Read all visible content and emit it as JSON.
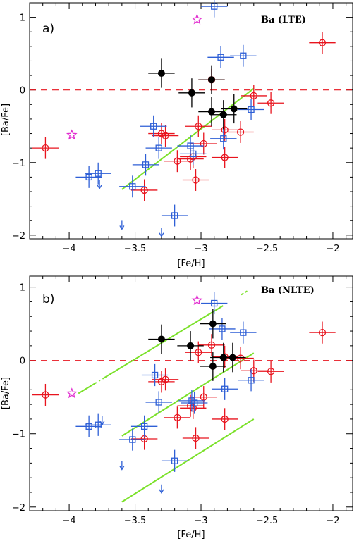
{
  "colors": {
    "red": "#e8141e",
    "blue": "#2e5fd6",
    "black": "#000000",
    "magenta": "#e22fd0",
    "green": "#7be12a",
    "zeroline": "#e8141e"
  },
  "chart_data": [
    {
      "type": "scatter",
      "panel_label": "a)",
      "element_label": "Ba   (LTE)",
      "xlabel": "[Fe/H]",
      "ylabel": "[Ba/Fe]",
      "xlim": [
        -4.3,
        -1.85
      ],
      "ylim": [
        -2.05,
        1.2
      ],
      "xticks": [
        -4,
        -3.5,
        -3,
        -2.5,
        -2
      ],
      "xtick_labels": [
        "−4",
        "−3.5",
        "−3",
        "−2.5",
        "−2"
      ],
      "yticks": [
        -2,
        -1,
        0,
        1
      ],
      "ytick_labels": [
        "−2",
        "−1",
        "0",
        "1"
      ],
      "zero_line": 0,
      "series": [
        {
          "marker": "circle-open",
          "color": "red",
          "x": [
            -4.18,
            -3.43,
            -3.3,
            -3.27,
            -3.18,
            -3.08,
            -3.06,
            -3.04,
            -3.02,
            -2.98,
            -2.92,
            -2.82,
            -2.82,
            -2.7,
            -2.6,
            -2.47,
            -2.08
          ],
          "y": [
            -0.8,
            -1.38,
            -0.6,
            -0.63,
            -0.98,
            -0.95,
            -0.92,
            -1.24,
            -0.5,
            -0.74,
            0.14,
            -0.93,
            -0.55,
            -0.58,
            -0.08,
            -0.18,
            0.65
          ],
          "xerr": [
            0.1,
            0.1,
            0.1,
            0.1,
            0.1,
            0.1,
            0.1,
            0.1,
            0.1,
            0.1,
            0.1,
            0.1,
            0.1,
            0.1,
            0.1,
            0.1,
            0.1
          ],
          "yerr": [
            0.15,
            0.15,
            0.15,
            0.15,
            0.15,
            0.15,
            0.15,
            0.15,
            0.15,
            0.15,
            0.15,
            0.15,
            0.15,
            0.15,
            0.15,
            0.15,
            0.15
          ]
        },
        {
          "marker": "square-open",
          "color": "blue",
          "x": [
            -3.85,
            -3.78,
            -3.52,
            -3.42,
            -3.36,
            -3.32,
            -3.2,
            -3.08,
            -3.06,
            -2.9,
            -2.85,
            -2.83,
            -2.68,
            -2.62
          ],
          "y": [
            -1.2,
            -1.15,
            -1.33,
            -1.03,
            -0.5,
            -0.8,
            -1.73,
            -0.77,
            -0.88,
            1.15,
            0.45,
            -0.67,
            0.47,
            -0.27
          ],
          "xerr": [
            0.1,
            0.1,
            0.1,
            0.1,
            0.1,
            0.1,
            0.1,
            0.1,
            0.1,
            0.1,
            0.1,
            0.1,
            0.1,
            0.1
          ],
          "yerr": [
            0.15,
            0.15,
            0.15,
            0.15,
            0.15,
            0.15,
            0.15,
            0.15,
            0.15,
            0.15,
            0.15,
            0.15,
            0.15,
            0.15
          ]
        },
        {
          "marker": "circle-filled",
          "color": "black",
          "x": [
            -3.3,
            -3.07,
            -2.92,
            -2.92,
            -2.83,
            -2.75
          ],
          "y": [
            0.23,
            -0.04,
            0.14,
            -0.3,
            -0.34,
            -0.26
          ],
          "xerr": [
            0.1,
            0.1,
            0.1,
            0.1,
            0.1,
            0.1
          ],
          "yerr": [
            0.2,
            0.2,
            0.2,
            0.2,
            0.2,
            0.2
          ]
        },
        {
          "marker": "star-open",
          "color": "magenta",
          "x": [
            -3.98,
            -3.03
          ],
          "y": [
            -0.62,
            0.97
          ]
        },
        {
          "marker": "arrow-down",
          "color": "blue",
          "x": [
            -3.77,
            -3.6,
            -3.3
          ],
          "y": [
            -1.3,
            -1.86,
            -1.96
          ]
        }
      ],
      "fit_lines": [
        {
          "color": "green",
          "x": [
            -3.6,
            -2.6
          ],
          "y": [
            -1.37,
            0.02
          ]
        }
      ]
    },
    {
      "type": "scatter",
      "panel_label": "b)",
      "element_label": "Ba   (NLTE)",
      "xlabel": "[Fe/H]",
      "ylabel": "[Ba/Fe]",
      "xlim": [
        -4.3,
        -1.85
      ],
      "ylim": [
        -2.05,
        1.15
      ],
      "xticks": [
        -4,
        -3.5,
        -3,
        -2.5,
        -2
      ],
      "xtick_labels": [
        "−4",
        "−3.5",
        "−3",
        "−2.5",
        "−2"
      ],
      "yticks": [
        -2,
        -1,
        0,
        1
      ],
      "ytick_labels": [
        "−2",
        "−1",
        "0",
        "1"
      ],
      "zero_line": 0,
      "series": [
        {
          "marker": "circle-open",
          "color": "red",
          "x": [
            -4.18,
            -3.43,
            -3.3,
            -3.27,
            -3.18,
            -3.08,
            -3.06,
            -3.04,
            -3.02,
            -2.98,
            -2.92,
            -2.82,
            -2.82,
            -2.7,
            -2.6,
            -2.47,
            -2.08
          ],
          "y": [
            -0.47,
            -1.07,
            -0.29,
            -0.26,
            -0.78,
            -0.62,
            -0.65,
            -1.06,
            0.11,
            -0.5,
            0.21,
            -0.8,
            0.05,
            0.03,
            -0.14,
            -0.15,
            0.38
          ],
          "xerr": [
            0.1,
            0.1,
            0.1,
            0.1,
            0.1,
            0.1,
            0.1,
            0.1,
            0.1,
            0.1,
            0.1,
            0.1,
            0.1,
            0.1,
            0.1,
            0.1,
            0.1
          ],
          "yerr": [
            0.15,
            0.15,
            0.15,
            0.15,
            0.15,
            0.15,
            0.15,
            0.15,
            0.15,
            0.15,
            0.15,
            0.15,
            0.15,
            0.15,
            0.15,
            0.15,
            0.15
          ]
        },
        {
          "marker": "square-open",
          "color": "blue",
          "x": [
            -3.85,
            -3.78,
            -3.52,
            -3.43,
            -3.35,
            -3.32,
            -3.2,
            -3.07,
            -3.05,
            -2.9,
            -2.84,
            -2.82,
            -2.68,
            -2.62
          ],
          "y": [
            -0.9,
            -0.88,
            -1.08,
            -0.9,
            -0.2,
            -0.57,
            -1.37,
            -0.55,
            -0.58,
            0.78,
            0.43,
            -0.39,
            0.38,
            -0.27
          ],
          "xerr": [
            0.1,
            0.1,
            0.1,
            0.1,
            0.1,
            0.1,
            0.1,
            0.1,
            0.1,
            0.1,
            0.1,
            0.1,
            0.1,
            0.1
          ],
          "yerr": [
            0.15,
            0.15,
            0.15,
            0.15,
            0.15,
            0.15,
            0.15,
            0.15,
            0.15,
            0.15,
            0.15,
            0.15,
            0.15,
            0.15
          ]
        },
        {
          "marker": "circle-filled",
          "color": "black",
          "x": [
            -3.3,
            -3.08,
            -2.91,
            -2.91,
            -2.83,
            -2.76
          ],
          "y": [
            0.29,
            0.2,
            0.5,
            -0.08,
            0.04,
            0.04
          ],
          "xerr": [
            0.1,
            0.1,
            0.1,
            0.1,
            0.1,
            0.1
          ],
          "yerr": [
            0.2,
            0.2,
            0.2,
            0.2,
            0.2,
            0.2
          ]
        },
        {
          "marker": "star-open",
          "color": "magenta",
          "x": [
            -3.98,
            -3.03
          ],
          "y": [
            -0.45,
            0.82
          ]
        },
        {
          "marker": "arrow-down",
          "color": "blue",
          "x": [
            -3.75,
            -3.6,
            -3.3
          ],
          "y": [
            -0.82,
            -1.43,
            -1.75
          ]
        }
      ],
      "fit_lines": [
        {
          "color": "green",
          "x": [
            -3.6,
            -2.6
          ],
          "y": [
            -1.03,
            0.1
          ]
        },
        {
          "color": "green",
          "x": [
            -3.93,
            -2.6
          ],
          "y": [
            -0.45,
            1.0
          ],
          "dashed": true
        },
        {
          "color": "green",
          "x": [
            -3.6,
            -2.6
          ],
          "y": [
            -1.93,
            -0.8
          ]
        }
      ]
    }
  ]
}
